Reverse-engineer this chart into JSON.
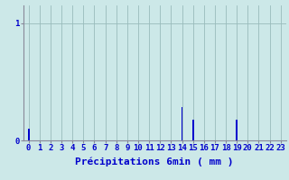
{
  "hours": [
    0,
    1,
    2,
    3,
    4,
    5,
    6,
    7,
    8,
    9,
    10,
    11,
    12,
    13,
    14,
    15,
    16,
    17,
    18,
    19,
    20,
    21,
    22,
    23
  ],
  "values": [
    0.1,
    0,
    0,
    0,
    0,
    0,
    0,
    0,
    0,
    0,
    0,
    0,
    0,
    0,
    0.28,
    0.18,
    0,
    0,
    0,
    0.18,
    0,
    0,
    0,
    0
  ],
  "bar_color": "#0000cc",
  "background_color": "#cce8e8",
  "grid_color": "#99bbbb",
  "axis_color": "#888899",
  "label_color": "#0000cc",
  "xlabel": "Précipitations 6min ( mm )",
  "ylim": [
    0,
    1.15
  ],
  "xlim": [
    -0.5,
    23.5
  ],
  "yticks": [
    0,
    1
  ],
  "ytick_labels": [
    "0",
    "1"
  ],
  "xlabel_fontsize": 8,
  "tick_fontsize": 6.5
}
